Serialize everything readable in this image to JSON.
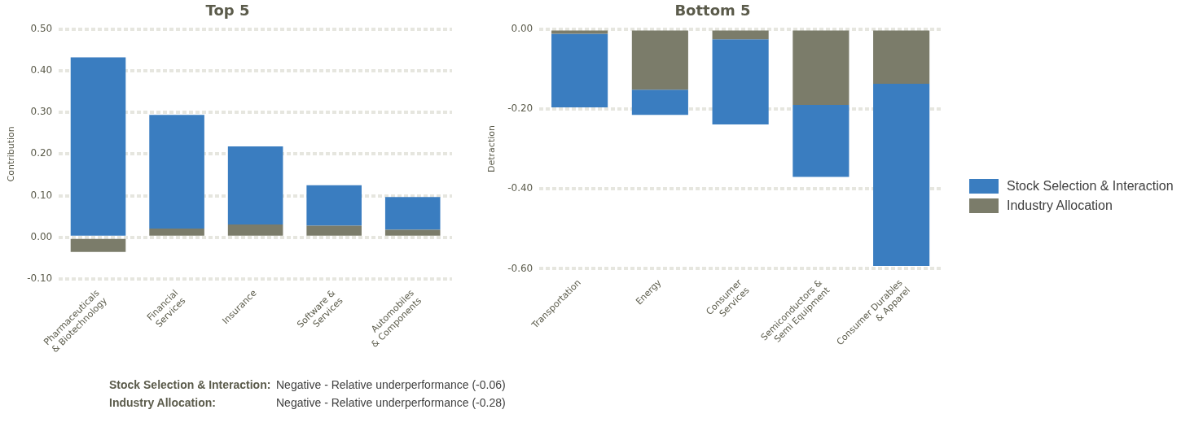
{
  "chart_data": [
    {
      "type": "bar",
      "title": "Top 5",
      "ylabel": "Contribution",
      "categories": [
        "Pharmaceuticals & Biotechnology",
        "Financial Services",
        "Insurance",
        "Software & Services",
        "Automobiles & Components"
      ],
      "stacked": true,
      "ylim": [
        -0.1,
        0.5
      ],
      "yticks": [
        {
          "value": -0.1,
          "label": "-0.10"
        },
        {
          "value": 0,
          "label": "0.00"
        },
        {
          "value": 0.1,
          "label": "0.10"
        },
        {
          "value": 0.2,
          "label": "0.20"
        },
        {
          "value": 0.3,
          "label": "0.30"
        },
        {
          "value": 0.4,
          "label": "0.40"
        },
        {
          "value": 0.5,
          "label": "0.50"
        }
      ],
      "grid": "y",
      "legend": false,
      "series": [
        {
          "color": "#7b7c6a",
          "values": [
            -0.035,
            0.021,
            0.031,
            0.028,
            0.018
          ]
        },
        {
          "color": "#3a7dc0",
          "values": [
            0.432,
            0.273,
            0.187,
            0.097,
            0.079
          ]
        }
      ]
    },
    {
      "type": "bar",
      "title": "Bottom 5",
      "ylabel": "Detraction",
      "categories": [
        "Transportation",
        "Energy",
        "Consumer Services",
        "Semiconductors & Semi Equipment",
        "Consumer Durables & Apparel"
      ],
      "stacked": true,
      "ylim": [
        -0.6,
        0
      ],
      "yticks": [
        {
          "value": -0.6,
          "label": "-0.60"
        },
        {
          "value": -0.4,
          "label": "-0.40"
        },
        {
          "value": -0.2,
          "label": "-0.20"
        },
        {
          "value": 0,
          "label": "0.00"
        }
      ],
      "grid": "y",
      "legend": "right",
      "series": [
        {
          "name": "Industry Allocation",
          "color": "#7b7c6a",
          "values": [
            -0.012,
            -0.152,
            -0.026,
            -0.19,
            -0.137
          ]
        },
        {
          "name": "Stock Selection & Interaction",
          "color": "#3a7dc0",
          "values": [
            -0.184,
            -0.063,
            -0.213,
            -0.18,
            -0.456
          ]
        }
      ],
      "annotations": [
        "Stock Selection & Interaction:",
        "Negative - Relative underperformance (-0.06)",
        "Industry Allocation:",
        "Negative - Relative underperformance (-0.28)"
      ]
    }
  ]
}
